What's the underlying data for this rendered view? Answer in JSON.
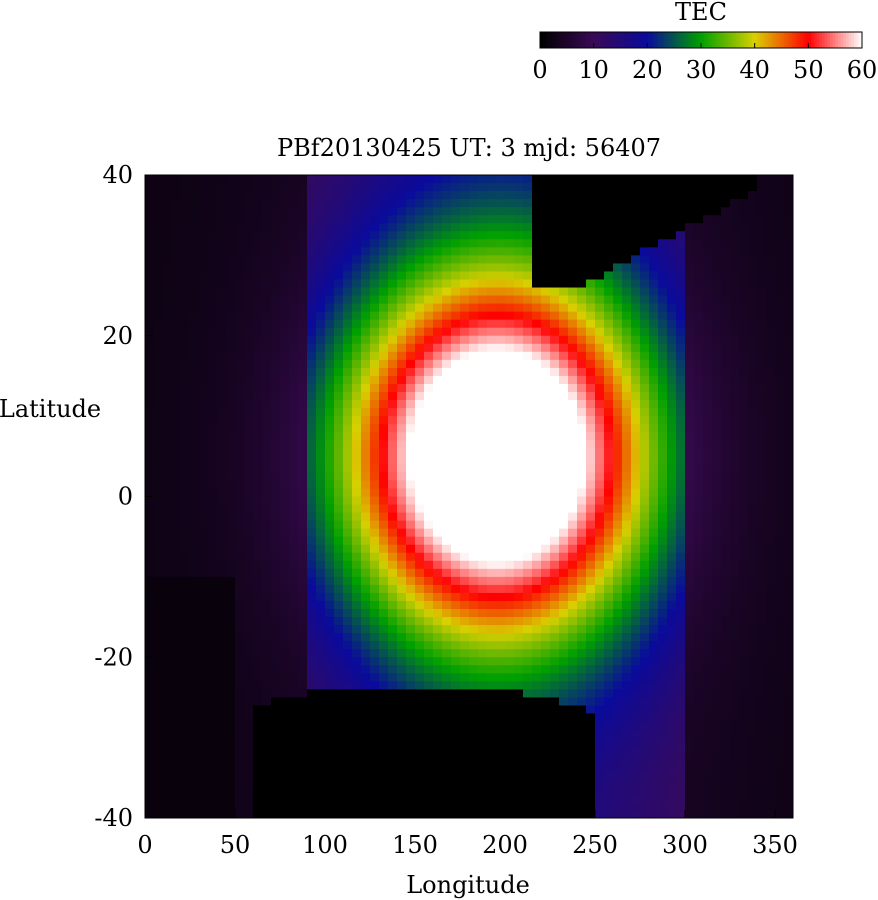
{
  "chart_data": {
    "type": "heatmap",
    "title": "PBf20130425  UT: 3  mjd: 56407",
    "xlabel": "Longitude",
    "ylabel": "Latitude",
    "xlim": [
      0,
      360
    ],
    "ylim": [
      -40,
      40
    ],
    "xticks": [
      "0",
      "50",
      "100",
      "150",
      "200",
      "250",
      "300",
      "350"
    ],
    "yticks": [
      "40",
      "20",
      "0",
      "-20",
      "-40"
    ],
    "colorbar": {
      "label": "TEC",
      "range": [
        0,
        60
      ],
      "ticks": [
        "0",
        "10",
        "20",
        "30",
        "40",
        "50",
        "60"
      ],
      "colors": [
        "#000000",
        "#3a0a55",
        "#0a0a9c",
        "#00a000",
        "#d8d000",
        "#ff0000",
        "#ffffff"
      ]
    },
    "anomaly": {
      "center_longitude": 195,
      "center_latitude": 5,
      "peak_tec": 62
    }
  }
}
